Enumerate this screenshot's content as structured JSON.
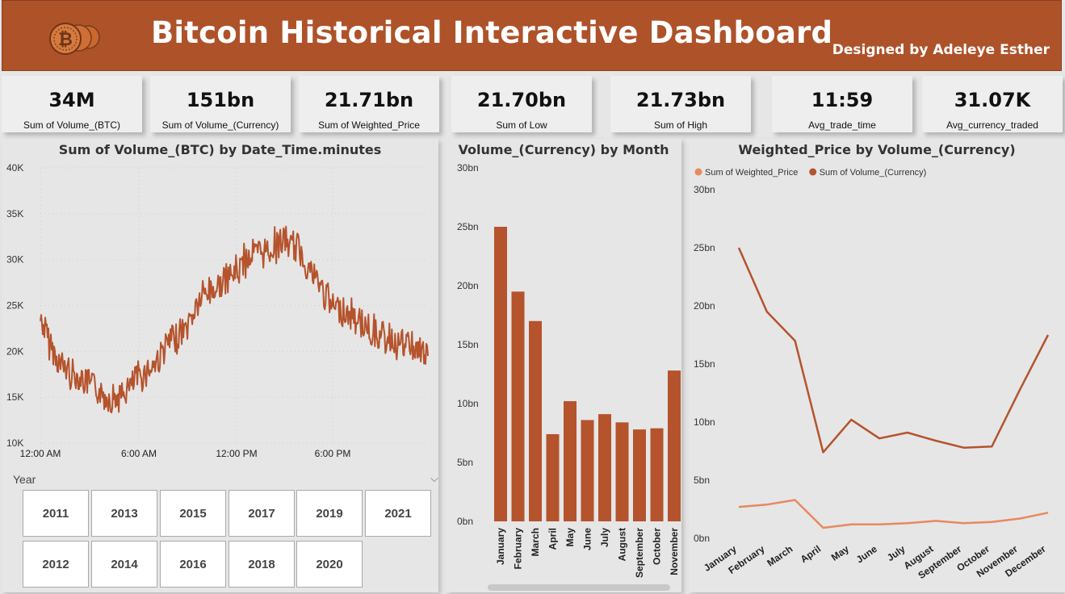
{
  "header": {
    "title": "Bitcoin Historical Interactive Dashboard",
    "designer": "Designed by Adeleye Esther",
    "logo_icon": "bitcoin-coins-icon",
    "brand_color": "#ae522a"
  },
  "kpis": [
    {
      "value": "34M",
      "label": "Sum of Volume_(BTC)"
    },
    {
      "value": "151bn",
      "label": "Sum of Volume_(Currency)"
    },
    {
      "value": "21.71bn",
      "label": "Sum of Weighted_Price"
    },
    {
      "value": "21.70bn",
      "label": "Sum of Low"
    },
    {
      "value": "21.73bn",
      "label": "Sum of High"
    },
    {
      "value": "11:59",
      "label": "Avg_trade_time"
    },
    {
      "value": "31.07K",
      "label": "Avg_currency_traded"
    }
  ],
  "slicer": {
    "title": "Year",
    "chevron_icon": "chevron-down-icon",
    "years_row1": [
      "2011",
      "2013",
      "2015",
      "2017",
      "2019",
      "2021"
    ],
    "years_row2": [
      "2012",
      "2014",
      "2016",
      "2018",
      "2020"
    ]
  },
  "chart_data": [
    {
      "type": "line",
      "title": "Sum of Volume_(BTC) by Date_Time.minutes",
      "color": "#b5532c",
      "x_ticks": [
        "12:00 AM",
        "6:00 AM",
        "12:00 PM",
        "6:00 PM"
      ],
      "y_ticks": [
        "10K",
        "15K",
        "20K",
        "25K",
        "30K",
        "35K",
        "40K"
      ],
      "ylim": [
        10000,
        40000
      ],
      "x": [
        "00:00",
        "01:00",
        "02:00",
        "03:00",
        "04:00",
        "05:00",
        "06:00",
        "07:00",
        "08:00",
        "09:00",
        "10:00",
        "11:00",
        "12:00",
        "13:00",
        "14:00",
        "15:00",
        "16:00",
        "17:00",
        "18:00",
        "19:00",
        "20:00",
        "21:00",
        "22:00",
        "23:00",
        "23:59"
      ],
      "y": [
        23500,
        19000,
        17500,
        16500,
        15000,
        15000,
        17000,
        18500,
        21000,
        22500,
        26000,
        27000,
        28500,
        30500,
        31000,
        32000,
        31000,
        28000,
        25000,
        24000,
        23000,
        21500,
        21000,
        20500,
        19500
      ]
    },
    {
      "type": "bar",
      "title": "Volume_(Currency) by Month",
      "color": "#b5532c",
      "y_ticks": [
        "0bn",
        "5bn",
        "10bn",
        "15bn",
        "20bn",
        "25bn",
        "30bn"
      ],
      "ylim": [
        0,
        30
      ],
      "categories": [
        "January",
        "February",
        "March",
        "April",
        "May",
        "June",
        "July",
        "August",
        "September",
        "October",
        "November"
      ],
      "values": [
        25.0,
        19.5,
        17.0,
        7.4,
        10.2,
        8.6,
        9.1,
        8.4,
        7.8,
        7.9,
        12.8
      ]
    },
    {
      "type": "line",
      "title": "Weighted_Price by Volume_(Currency)",
      "y_ticks": [
        "0bn",
        "5bn",
        "10bn",
        "15bn",
        "20bn",
        "25bn",
        "30bn"
      ],
      "ylim": [
        0,
        30
      ],
      "categories": [
        "January",
        "February",
        "March",
        "April",
        "May",
        "June",
        "July",
        "August",
        "September",
        "October",
        "November",
        "December"
      ],
      "series": [
        {
          "name": "Sum of Weighted_Price",
          "color": "#e8895e",
          "values": [
            2.7,
            2.9,
            3.3,
            0.9,
            1.2,
            1.2,
            1.3,
            1.5,
            1.3,
            1.4,
            1.7,
            2.2
          ]
        },
        {
          "name": "Sum of Volume_(Currency)",
          "color": "#b5532c",
          "values": [
            25.0,
            19.5,
            17.0,
            7.4,
            10.2,
            8.6,
            9.1,
            8.4,
            7.8,
            7.9,
            12.8,
            17.5
          ]
        }
      ]
    }
  ]
}
